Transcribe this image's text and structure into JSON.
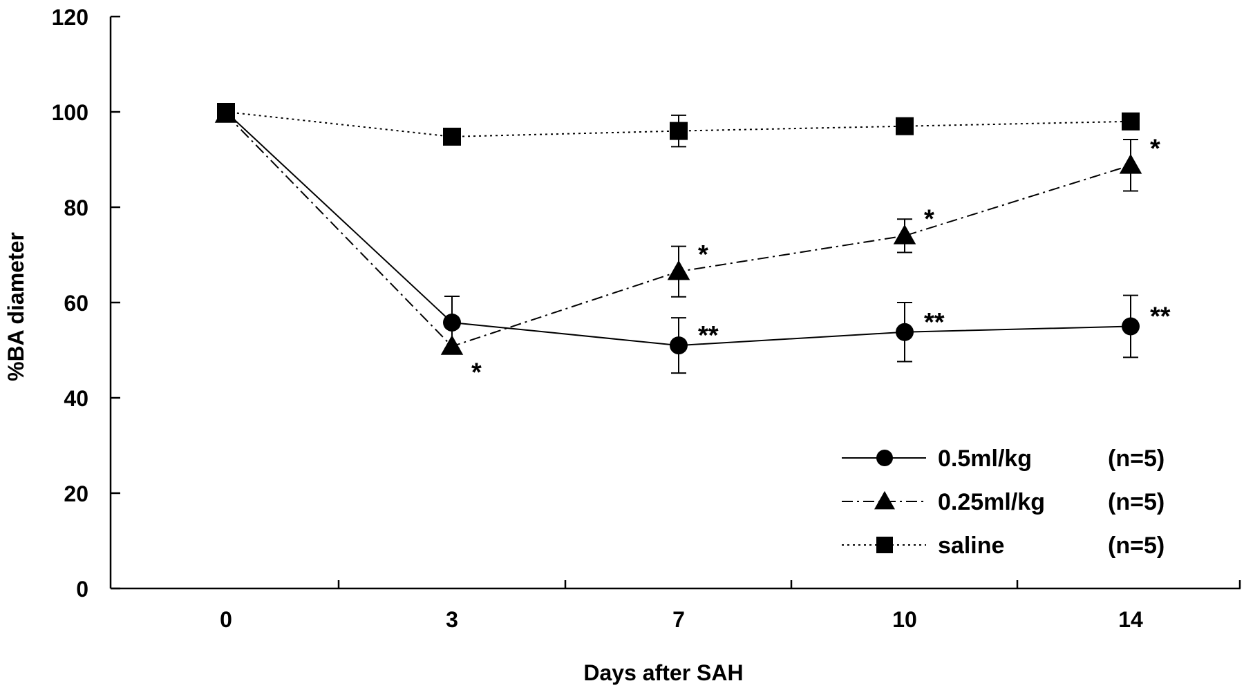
{
  "chart_data": {
    "type": "line",
    "title": "",
    "xlabel": "Days after SAH",
    "ylabel": "%BA diameter",
    "x_categories": [
      "0",
      "3",
      "7",
      "10",
      "14"
    ],
    "ylim": [
      0,
      120
    ],
    "y_ticks": [
      "0",
      "20",
      "40",
      "60",
      "80",
      "100",
      "120"
    ],
    "grid": false,
    "legend_position": "bottom-right",
    "series": [
      {
        "name": "0.5ml/kg",
        "n_label": "(n=5)",
        "marker": "circle",
        "line_style": "solid",
        "values": [
          100,
          55.8,
          51,
          53.8,
          55
        ],
        "error": [
          0,
          5.5,
          5.8,
          6.2,
          6.5
        ],
        "significance": [
          "",
          "",
          "**",
          "**",
          "**"
        ]
      },
      {
        "name": "0.25ml/kg",
        "n_label": "(n=5)",
        "marker": "triangle",
        "line_style": "dash-dot",
        "values": [
          99.5,
          50.8,
          66.5,
          74,
          88.8
        ],
        "error": [
          0,
          0,
          5.3,
          3.5,
          5.4
        ],
        "significance": [
          "",
          "*",
          "*",
          "*",
          "*"
        ]
      },
      {
        "name": "saline",
        "n_label": "(n=5)",
        "marker": "square",
        "line_style": "dotted",
        "values": [
          100,
          94.8,
          96,
          97,
          98
        ],
        "error": [
          0,
          1.5,
          3.3,
          0.8,
          0.5
        ],
        "significance": [
          "",
          "",
          "",
          "",
          ""
        ]
      }
    ],
    "colors": {
      "ink": "#000000",
      "background": "#ffffff"
    }
  }
}
